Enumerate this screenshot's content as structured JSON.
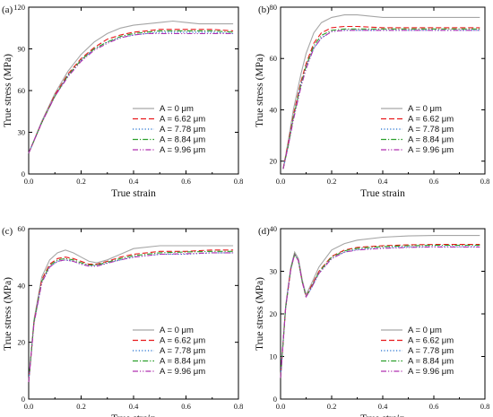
{
  "figure": {
    "colors": {
      "axis": "#000000",
      "series": [
        "#a6a6a6",
        "#e8191b",
        "#1f6ecf",
        "#2ca02c",
        "#b030b0"
      ],
      "dash": [
        "",
        "6,3",
        "1.2,2.2",
        "6,2,1.2,2",
        "6,2,1.2,2,1.2,2"
      ]
    }
  },
  "chart_data": [
    {
      "panel_label": "(a)",
      "type": "line",
      "xlabel": "True strain",
      "ylabel": "True stress (MPa)",
      "xlim": [
        0.0,
        0.8
      ],
      "ylim": [
        0,
        120
      ],
      "xticks": [
        "0.0",
        "0.2",
        "0.4",
        "0.6",
        "0.8"
      ],
      "yticks": [
        "0",
        "30",
        "60",
        "90",
        "120"
      ],
      "grid": false,
      "legend_position": "bottom-right",
      "series": [
        {
          "name": "A = 0 μm",
          "x": [
            0.0,
            0.05,
            0.1,
            0.15,
            0.2,
            0.25,
            0.3,
            0.35,
            0.4,
            0.45,
            0.5,
            0.55,
            0.6,
            0.65,
            0.7,
            0.78
          ],
          "y": [
            15,
            38,
            58,
            74,
            86,
            95,
            101,
            105,
            107,
            108,
            109,
            110,
            109,
            108,
            108,
            108
          ]
        },
        {
          "name": "A = 6.62 μm",
          "x": [
            0.0,
            0.05,
            0.1,
            0.15,
            0.2,
            0.25,
            0.3,
            0.35,
            0.4,
            0.45,
            0.5,
            0.55,
            0.6,
            0.65,
            0.7,
            0.78
          ],
          "y": [
            15,
            37,
            57,
            72,
            83,
            91,
            97,
            100,
            102,
            103,
            104,
            104,
            104,
            104,
            104,
            103
          ]
        },
        {
          "name": "A = 7.78 μm",
          "x": [
            0.0,
            0.05,
            0.1,
            0.15,
            0.2,
            0.25,
            0.3,
            0.35,
            0.4,
            0.45,
            0.5,
            0.55,
            0.6,
            0.65,
            0.7,
            0.78
          ],
          "y": [
            15,
            37,
            56,
            71,
            82,
            90,
            95,
            98,
            100,
            101,
            102,
            102,
            102,
            102,
            102,
            101
          ]
        },
        {
          "name": "A = 8.84 μm",
          "x": [
            0.0,
            0.05,
            0.1,
            0.15,
            0.2,
            0.25,
            0.3,
            0.35,
            0.4,
            0.45,
            0.5,
            0.55,
            0.6,
            0.65,
            0.7,
            0.78
          ],
          "y": [
            15,
            37,
            56,
            71,
            82,
            90,
            95,
            99,
            101,
            102,
            103,
            103,
            103,
            103,
            103,
            102
          ]
        },
        {
          "name": "A = 9.96 μm",
          "x": [
            0.0,
            0.05,
            0.1,
            0.15,
            0.2,
            0.25,
            0.3,
            0.35,
            0.4,
            0.45,
            0.5,
            0.55,
            0.6,
            0.65,
            0.7,
            0.78
          ],
          "y": [
            15,
            37,
            56,
            70,
            81,
            89,
            94,
            98,
            100,
            101,
            101,
            101,
            101,
            101,
            101,
            101
          ]
        }
      ]
    },
    {
      "panel_label": "(b)",
      "type": "line",
      "xlabel": "True strain",
      "ylabel": "True stress (MPa)",
      "xlim": [
        0.0,
        0.8
      ],
      "ylim": [
        15,
        80
      ],
      "xticks": [
        "0.0",
        "0.2",
        "0.4",
        "0.6",
        "0.8"
      ],
      "yticks": [
        "20",
        "40",
        "60",
        "80"
      ],
      "ytick_values": [
        20,
        40,
        60,
        80
      ],
      "grid": false,
      "legend_position": "bottom-right",
      "series": [
        {
          "name": "A = 0 μm",
          "x": [
            0.01,
            0.03,
            0.05,
            0.08,
            0.1,
            0.13,
            0.16,
            0.2,
            0.25,
            0.3,
            0.4,
            0.5,
            0.6,
            0.7,
            0.78
          ],
          "y": [
            17,
            28,
            40,
            54,
            62,
            70,
            74,
            76,
            77,
            77,
            76,
            76,
            76,
            76,
            76
          ]
        },
        {
          "name": "A = 6.62 μm",
          "x": [
            0.01,
            0.03,
            0.05,
            0.08,
            0.1,
            0.13,
            0.16,
            0.2,
            0.25,
            0.3,
            0.4,
            0.5,
            0.6,
            0.7,
            0.78
          ],
          "y": [
            17,
            27,
            38,
            51,
            58,
            66,
            70,
            72,
            72.5,
            72.5,
            72,
            72,
            72,
            72,
            72
          ]
        },
        {
          "name": "A = 7.78 μm",
          "x": [
            0.01,
            0.03,
            0.05,
            0.08,
            0.1,
            0.13,
            0.16,
            0.2,
            0.25,
            0.3,
            0.4,
            0.5,
            0.6,
            0.7,
            0.78
          ],
          "y": [
            17,
            26,
            37,
            50,
            57,
            64,
            68,
            70.5,
            71,
            71,
            71,
            71,
            71,
            71,
            71
          ]
        },
        {
          "name": "A = 8.84 μm",
          "x": [
            0.01,
            0.03,
            0.05,
            0.08,
            0.1,
            0.13,
            0.16,
            0.2,
            0.25,
            0.3,
            0.4,
            0.5,
            0.6,
            0.7,
            0.78
          ],
          "y": [
            17,
            26,
            37,
            50,
            57,
            65,
            69,
            71,
            71.5,
            71.5,
            71.5,
            71.5,
            71.5,
            71.5,
            71.5
          ]
        },
        {
          "name": "A = 9.96 μm",
          "x": [
            0.01,
            0.03,
            0.05,
            0.08,
            0.1,
            0.13,
            0.16,
            0.2,
            0.25,
            0.3,
            0.4,
            0.5,
            0.6,
            0.7,
            0.78
          ],
          "y": [
            17,
            26,
            36,
            49,
            56,
            64,
            68,
            70.5,
            71,
            71,
            71,
            71,
            71,
            71,
            71
          ]
        }
      ]
    },
    {
      "panel_label": "(c)",
      "type": "line",
      "xlabel": "True strain",
      "ylabel": "True stress (MPa)",
      "xlim": [
        0.0,
        0.8
      ],
      "ylim": [
        0,
        60
      ],
      "xticks": [
        "0.0",
        "0.2",
        "0.4",
        "0.6",
        "0.8"
      ],
      "yticks": [
        "0",
        "20",
        "40",
        "60"
      ],
      "grid": false,
      "legend_position": "bottom-right",
      "series": [
        {
          "name": "A = 0 μm",
          "x": [
            0.0,
            0.02,
            0.05,
            0.08,
            0.11,
            0.14,
            0.17,
            0.2,
            0.23,
            0.26,
            0.3,
            0.35,
            0.4,
            0.5,
            0.6,
            0.7,
            0.78
          ],
          "y": [
            6,
            28,
            43,
            49,
            51.5,
            52.5,
            51.5,
            50,
            48.5,
            48,
            49,
            51,
            53,
            54,
            54,
            54,
            54
          ]
        },
        {
          "name": "A = 6.62 μm",
          "x": [
            0.0,
            0.02,
            0.05,
            0.08,
            0.11,
            0.14,
            0.17,
            0.2,
            0.23,
            0.26,
            0.3,
            0.35,
            0.4,
            0.5,
            0.6,
            0.7,
            0.78
          ],
          "y": [
            6,
            27,
            42,
            47.5,
            49.5,
            50,
            49.5,
            48.5,
            47.5,
            47.5,
            48.5,
            50,
            51,
            52,
            52,
            52.5,
            52.5
          ]
        },
        {
          "name": "A = 7.78 μm",
          "x": [
            0.0,
            0.02,
            0.05,
            0.08,
            0.11,
            0.14,
            0.17,
            0.2,
            0.23,
            0.26,
            0.3,
            0.35,
            0.4,
            0.5,
            0.6,
            0.7,
            0.78
          ],
          "y": [
            6,
            27,
            41,
            46.5,
            48.5,
            49,
            48.5,
            47.5,
            47,
            47,
            48,
            49,
            50,
            51,
            51,
            51.5,
            51.5
          ]
        },
        {
          "name": "A = 8.84 μm",
          "x": [
            0.0,
            0.02,
            0.05,
            0.08,
            0.11,
            0.14,
            0.17,
            0.2,
            0.23,
            0.26,
            0.3,
            0.35,
            0.4,
            0.5,
            0.6,
            0.7,
            0.78
          ],
          "y": [
            6,
            27,
            41.5,
            47,
            49,
            49.5,
            49,
            48,
            47.2,
            47.2,
            48.2,
            49.5,
            50.5,
            51.5,
            51.8,
            52,
            52
          ]
        },
        {
          "name": "A = 9.96 μm",
          "x": [
            0.0,
            0.02,
            0.05,
            0.08,
            0.11,
            0.14,
            0.17,
            0.2,
            0.23,
            0.26,
            0.3,
            0.35,
            0.4,
            0.5,
            0.6,
            0.7,
            0.78
          ],
          "y": [
            6,
            26.5,
            41,
            46.5,
            48.5,
            49,
            48.5,
            47.5,
            46.8,
            46.8,
            47.8,
            49,
            50,
            51,
            51.2,
            51.5,
            51.5
          ]
        }
      ]
    },
    {
      "panel_label": "(d)",
      "type": "line",
      "xlabel": "True strain",
      "ylabel": "True stress (MPa)",
      "xlim": [
        0.0,
        0.8
      ],
      "ylim": [
        0,
        40
      ],
      "xticks": [
        "0.0",
        "0.2",
        "0.4",
        "0.6",
        "0.8"
      ],
      "yticks": [
        "0",
        "10",
        "20",
        "30",
        "40"
      ],
      "grid": false,
      "legend_position": "bottom-right",
      "series": [
        {
          "name": "A = 0 μm",
          "x": [
            0.0,
            0.02,
            0.04,
            0.055,
            0.07,
            0.085,
            0.1,
            0.12,
            0.15,
            0.2,
            0.25,
            0.3,
            0.4,
            0.5,
            0.6,
            0.7,
            0.78
          ],
          "y": [
            5,
            22,
            31,
            34.5,
            33,
            28,
            24.5,
            27,
            31,
            35,
            36.5,
            37.3,
            38,
            38.3,
            38.4,
            38.4,
            38.4
          ]
        },
        {
          "name": "A = 6.62 μm",
          "x": [
            0.0,
            0.02,
            0.04,
            0.055,
            0.07,
            0.085,
            0.1,
            0.12,
            0.15,
            0.2,
            0.25,
            0.3,
            0.4,
            0.5,
            0.6,
            0.7,
            0.78
          ],
          "y": [
            5,
            21.5,
            30.5,
            34,
            32.5,
            27.5,
            24,
            26.5,
            30,
            33.5,
            35,
            35.6,
            36,
            36.2,
            36.3,
            36.3,
            36.3
          ]
        },
        {
          "name": "A = 7.78 μm",
          "x": [
            0.0,
            0.02,
            0.04,
            0.055,
            0.07,
            0.085,
            0.1,
            0.12,
            0.15,
            0.2,
            0.25,
            0.3,
            0.4,
            0.5,
            0.6,
            0.7,
            0.78
          ],
          "y": [
            5,
            21.5,
            30.5,
            34,
            32.5,
            27.5,
            24,
            26,
            29.5,
            33,
            34.5,
            35.1,
            35.5,
            35.7,
            35.8,
            35.8,
            35.8
          ]
        },
        {
          "name": "A = 8.84 μm",
          "x": [
            0.0,
            0.02,
            0.04,
            0.055,
            0.07,
            0.085,
            0.1,
            0.12,
            0.15,
            0.2,
            0.25,
            0.3,
            0.4,
            0.5,
            0.6,
            0.7,
            0.78
          ],
          "y": [
            5,
            21.5,
            30.5,
            34,
            32.5,
            27.5,
            24,
            26.2,
            29.8,
            33.3,
            34.8,
            35.4,
            35.8,
            36,
            36.1,
            36.1,
            36.1
          ]
        },
        {
          "name": "A = 9.96 μm",
          "x": [
            0.0,
            0.02,
            0.04,
            0.055,
            0.07,
            0.085,
            0.1,
            0.12,
            0.15,
            0.2,
            0.25,
            0.3,
            0.4,
            0.5,
            0.6,
            0.7,
            0.78
          ],
          "y": [
            5,
            21.5,
            30.5,
            34,
            32.5,
            27.5,
            24,
            26,
            29.5,
            33,
            34.5,
            35,
            35.4,
            35.6,
            35.7,
            35.7,
            35.7
          ]
        }
      ]
    }
  ]
}
